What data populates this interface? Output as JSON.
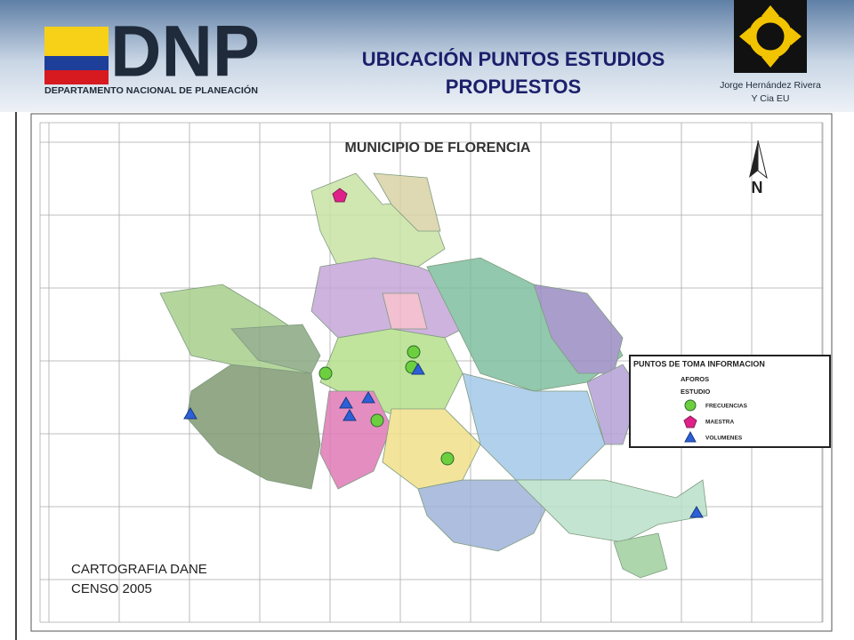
{
  "header": {
    "logo_text": "DNP",
    "logo_subtitle": "DEPARTAMENTO NACIONAL DE PLANEACIÓN",
    "title_lines": [
      "UBICACIÓN PUNTOS ESTUDIOS",
      "PROPUESTOS"
    ],
    "company_lines": [
      "Jorge Hernández Rivera",
      "Y Cia EU"
    ]
  },
  "map": {
    "title": "MUNICIPIO DE FLORENCIA",
    "north": "N",
    "legend": {
      "title": "PUNTOS DE TOMA INFORMACION",
      "group": "AFOROS",
      "subgroup": "ESTUDIO",
      "items": [
        "FRECUENCIAS",
        "MAESTRA",
        "VOLUMENES"
      ]
    },
    "source_lines": [
      "CARTOGRAFIA DANE",
      "CENSO 2005"
    ]
  }
}
